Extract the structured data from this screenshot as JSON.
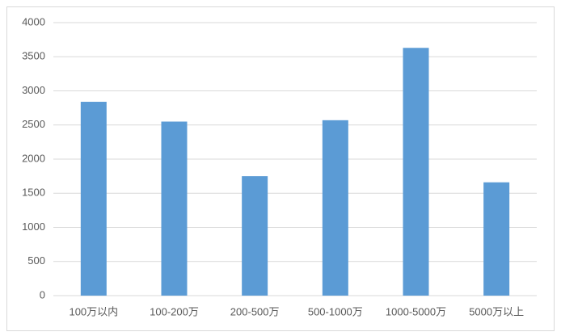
{
  "chart_data": {
    "type": "bar",
    "categories": [
      "100万以内",
      "100-200万",
      "200-500万",
      "500-1000万",
      "1000-5000万",
      "5000万以上"
    ],
    "values": [
      2840,
      2550,
      1750,
      2570,
      3630,
      1660
    ],
    "color": "#5b9bd5",
    "ylim": [
      0,
      4000
    ],
    "yticks": [
      0,
      500,
      1000,
      1500,
      2000,
      2500,
      3000,
      3500,
      4000
    ],
    "grid": true
  }
}
